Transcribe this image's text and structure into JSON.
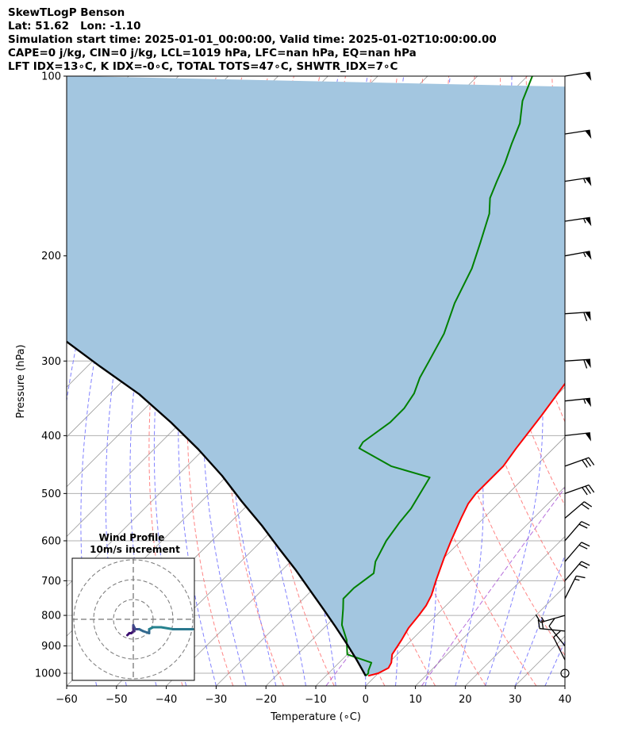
{
  "header": {
    "line1": "SkewTLogP Benson",
    "line2": "Lat: 51.62   Lon: -1.10",
    "line3": "Simulation start time: 2025-01-01_00:00:00, Valid time: 2025-01-02T10:00:00.00",
    "line4": "CAPE=0 j/kg, CIN=0 j/kg, LCL=1019 hPa, LFC=nan hPa, EQ=nan hPa",
    "line5": "LFT IDX=13∘C, K IDX=-0∘C, TOTAL TOTS=47∘C, SHWTR_IDX=7∘C"
  },
  "chart_data": {
    "type": "line",
    "title": "SkewTLogP Benson",
    "xlabel": "Temperature (∘C)",
    "ylabel": "Pressure (hPa)",
    "xlim": [
      -60,
      40
    ],
    "ylim": [
      1050,
      100
    ],
    "y_scale": "log",
    "grid": true,
    "x_ticks": [
      -60,
      -50,
      -40,
      -30,
      -20,
      -10,
      0,
      10,
      20,
      30,
      40
    ],
    "y_ticks": [
      1000,
      900,
      800,
      700,
      600,
      500,
      400,
      300,
      200,
      100
    ],
    "colors": {
      "temperature": "#ff0000",
      "dewpoint": "#008000",
      "parcel": "#000000",
      "cin_shading": "#a3c6e0",
      "dry_adiabats": "#ff6666",
      "moist_adiabats": "#6b6bff",
      "mixing_ratio": "#9933cc",
      "isotherms": "#999999"
    },
    "series": [
      {
        "key": "temperature",
        "points": [
          [
            -1.5,
            1010
          ],
          [
            0,
            1000
          ],
          [
            1,
            980
          ],
          [
            0.5,
            960
          ],
          [
            -1,
            930
          ],
          [
            -2,
            880
          ],
          [
            -3,
            840
          ],
          [
            -3.5,
            800
          ],
          [
            -4,
            770
          ],
          [
            -5,
            740
          ],
          [
            -7,
            700
          ],
          [
            -10,
            640
          ],
          [
            -12,
            600
          ],
          [
            -14.5,
            550
          ],
          [
            -16,
            520
          ],
          [
            -16.5,
            500
          ],
          [
            -16.5,
            480
          ],
          [
            -16.5,
            450
          ],
          [
            -17.5,
            420
          ],
          [
            -19,
            370
          ],
          [
            -21,
            320
          ],
          [
            -23,
            280
          ],
          [
            -26,
            240
          ],
          [
            -30,
            220
          ],
          [
            -33.5,
            200
          ],
          [
            -39,
            180
          ],
          [
            -45,
            160
          ],
          [
            -51.5,
            140
          ],
          [
            -57,
            120
          ],
          [
            -59,
            110
          ],
          [
            -60,
            105
          ]
        ]
      },
      {
        "key": "dewpoint",
        "points": [
          [
            -2,
            1010
          ],
          [
            -2,
            1000
          ],
          [
            -2.5,
            990
          ],
          [
            -3.5,
            960
          ],
          [
            -10,
            930
          ],
          [
            -13,
            880
          ],
          [
            -17,
            830
          ],
          [
            -20,
            780
          ],
          [
            -22,
            750
          ],
          [
            -22,
            720
          ],
          [
            -21,
            680
          ],
          [
            -23,
            650
          ],
          [
            -25,
            600
          ],
          [
            -26,
            560
          ],
          [
            -26.5,
            530
          ],
          [
            -29,
            470
          ],
          [
            -39,
            450
          ],
          [
            -49,
            420
          ],
          [
            -49.5,
            410
          ],
          [
            -48,
            380
          ],
          [
            -48,
            360
          ],
          [
            -49,
            340
          ],
          [
            -51,
            320
          ],
          [
            -52.5,
            300
          ],
          [
            -55,
            270
          ],
          [
            -59,
            240
          ],
          [
            -62.5,
            210
          ],
          [
            -66,
            190
          ],
          [
            -70,
            170
          ],
          [
            -73,
            160
          ],
          [
            -75,
            150
          ],
          [
            -77,
            140
          ],
          [
            -79.5,
            130
          ],
          [
            -82,
            120
          ],
          [
            -86,
            110
          ],
          [
            -89,
            100
          ]
        ]
      },
      {
        "key": "parcel",
        "points": [
          [
            -2,
            1010
          ],
          [
            -7,
            950
          ],
          [
            -12.5,
            890
          ],
          [
            -18,
            835
          ],
          [
            -24,
            780
          ],
          [
            -30.5,
            725
          ],
          [
            -37.5,
            670
          ],
          [
            -45,
            618
          ],
          [
            -53,
            566
          ],
          [
            -62,
            515
          ],
          [
            -71,
            467
          ],
          [
            -81,
            422
          ],
          [
            -92,
            380
          ],
          [
            -104,
            341
          ],
          [
            -118,
            305
          ],
          [
            -132,
            272
          ],
          [
            -149,
            240
          ],
          [
            -168,
            211
          ],
          [
            -189,
            184
          ],
          [
            -213,
            160
          ],
          [
            -238,
            139
          ],
          [
            -264,
            120
          ],
          [
            -292,
            103
          ],
          [
            -306,
            95
          ]
        ]
      }
    ],
    "wind_barbs": [
      {
        "p": 100,
        "u_ms": -26,
        "v_ms": -4
      },
      {
        "p": 125,
        "u_ms": -26,
        "v_ms": -4
      },
      {
        "p": 150,
        "u_ms": -27,
        "v_ms": -4
      },
      {
        "p": 175,
        "u_ms": -27,
        "v_ms": -4
      },
      {
        "p": 200,
        "u_ms": -27,
        "v_ms": -5
      },
      {
        "p": 250,
        "u_ms": -30,
        "v_ms": -2
      },
      {
        "p": 300,
        "u_ms": -30,
        "v_ms": -2
      },
      {
        "p": 350,
        "u_ms": -28,
        "v_ms": -3
      },
      {
        "p": 400,
        "u_ms": -26,
        "v_ms": -3
      },
      {
        "p": 450,
        "u_ms": -14,
        "v_ms": -5
      },
      {
        "p": 500,
        "u_ms": -14,
        "v_ms": -5
      },
      {
        "p": 550,
        "u_ms": -7,
        "v_ms": -6
      },
      {
        "p": 600,
        "u_ms": -6,
        "v_ms": -7
      },
      {
        "p": 650,
        "u_ms": -6,
        "v_ms": -7
      },
      {
        "p": 700,
        "u_ms": -6,
        "v_ms": -7
      },
      {
        "p": 750,
        "u_ms": -3,
        "v_ms": -6
      },
      {
        "p": 800,
        "u_ms": 7,
        "v_ms": 2
      },
      {
        "p": 850,
        "u_ms": 10,
        "v_ms": -1
      },
      {
        "p": 900,
        "u_ms": 4,
        "v_ms": -5
      },
      {
        "p": 950,
        "u_ms": 2,
        "v_ms": -4
      },
      {
        "p": 1000,
        "u_ms": 0,
        "v_ms": 0
      }
    ],
    "hodograph": {
      "title": "Wind Profile",
      "subtitle": "10m/s increment",
      "rings_ms": [
        10,
        20,
        30
      ],
      "points": [
        [
          -3,
          -8
        ],
        [
          -2,
          -7
        ],
        [
          -1,
          -7
        ],
        [
          0,
          -6
        ],
        [
          0.5,
          -6
        ],
        [
          0,
          -5
        ],
        [
          0,
          -3
        ],
        [
          1,
          -5
        ],
        [
          3,
          -5
        ],
        [
          5,
          -6
        ],
        [
          8,
          -7
        ],
        [
          8,
          -5
        ],
        [
          10,
          -4
        ],
        [
          14,
          -4
        ],
        [
          20,
          -5
        ],
        [
          26,
          -5
        ],
        [
          30,
          -5
        ]
      ]
    }
  }
}
